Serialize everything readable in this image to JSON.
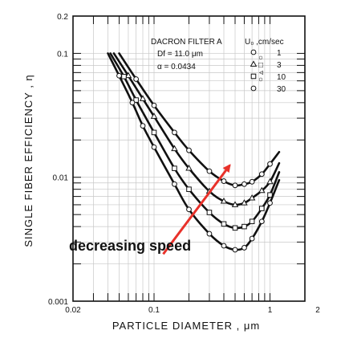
{
  "chart_data": {
    "type": "line",
    "xscale": "log",
    "yscale": "log",
    "xlim": [
      0.02,
      2
    ],
    "ylim": [
      0.001,
      0.2
    ],
    "x_ticks": [
      {
        "value": 0.02,
        "label": "0.02"
      },
      {
        "value": 0.1,
        "label": "0.1"
      },
      {
        "value": 1,
        "label": "1"
      },
      {
        "value": 2,
        "label": "2"
      }
    ],
    "y_ticks": [
      {
        "value": 0.2,
        "label": "0.2"
      },
      {
        "value": 0.1,
        "label": "0.1"
      },
      {
        "value": 0.01,
        "label": "0.01"
      },
      {
        "value": 0.001,
        "label": "0.001"
      }
    ],
    "xlabel": "PARTICLE  DIAMETER  ,  μm",
    "ylabel": "SINGLE  FIBER  EFFICIENCY ,  η",
    "legend": {
      "title": "DACRON FILTER A",
      "param_lines": [
        "Df = 11.0 μm",
        "α = 0.0434"
      ],
      "column_header": "U₀ ,cm/sec",
      "entries": [
        {
          "marker": "circle",
          "label": "1"
        },
        {
          "marker": "triangle",
          "label": "3"
        },
        {
          "marker": "square",
          "label": "10"
        },
        {
          "marker": "circle",
          "label": "30"
        }
      ],
      "rotated_labels": [
        "○",
        "▵",
        "□",
        "○"
      ]
    },
    "series": [
      {
        "name": "1",
        "marker": "circle",
        "color": "#111111",
        "points": [
          [
            0.05,
            0.1
          ],
          [
            0.07,
            0.062
          ],
          [
            0.1,
            0.038
          ],
          [
            0.15,
            0.023
          ],
          [
            0.2,
            0.0165
          ],
          [
            0.3,
            0.0112
          ],
          [
            0.4,
            0.0093
          ],
          [
            0.5,
            0.0086
          ],
          [
            0.6,
            0.0088
          ],
          [
            0.7,
            0.0092
          ],
          [
            0.85,
            0.0106
          ],
          [
            1.0,
            0.0128
          ],
          [
            1.2,
            0.016
          ]
        ]
      },
      {
        "name": "3",
        "marker": "triangle",
        "color": "#111111",
        "points": [
          [
            0.045,
            0.1
          ],
          [
            0.06,
            0.066
          ],
          [
            0.08,
            0.043
          ],
          [
            0.1,
            0.031
          ],
          [
            0.15,
            0.017
          ],
          [
            0.2,
            0.0118
          ],
          [
            0.3,
            0.0077
          ],
          [
            0.4,
            0.0064
          ],
          [
            0.5,
            0.006
          ],
          [
            0.6,
            0.0062
          ],
          [
            0.7,
            0.0068
          ],
          [
            0.85,
            0.0078
          ],
          [
            1.0,
            0.0092
          ],
          [
            1.2,
            0.013
          ]
        ]
      },
      {
        "name": "10",
        "marker": "square",
        "color": "#111111",
        "points": [
          [
            0.042,
            0.1
          ],
          [
            0.055,
            0.065
          ],
          [
            0.07,
            0.042
          ],
          [
            0.1,
            0.023
          ],
          [
            0.15,
            0.0118
          ],
          [
            0.2,
            0.008
          ],
          [
            0.3,
            0.0052
          ],
          [
            0.4,
            0.0042
          ],
          [
            0.5,
            0.0039
          ],
          [
            0.6,
            0.004
          ],
          [
            0.7,
            0.0044
          ],
          [
            0.85,
            0.0056
          ],
          [
            1.0,
            0.0072
          ],
          [
            1.2,
            0.011
          ]
        ]
      },
      {
        "name": "30",
        "marker": "circle",
        "color": "#111111",
        "points": [
          [
            0.04,
            0.1
          ],
          [
            0.05,
            0.066
          ],
          [
            0.065,
            0.04
          ],
          [
            0.08,
            0.026
          ],
          [
            0.1,
            0.0175
          ],
          [
            0.15,
            0.0088
          ],
          [
            0.2,
            0.0055
          ],
          [
            0.3,
            0.0035
          ],
          [
            0.4,
            0.0028
          ],
          [
            0.5,
            0.0026
          ],
          [
            0.6,
            0.0027
          ],
          [
            0.7,
            0.0032
          ],
          [
            0.85,
            0.0044
          ],
          [
            1.0,
            0.0062
          ],
          [
            1.2,
            0.0095
          ]
        ]
      }
    ],
    "annotations": [
      {
        "text": "decreasing speed",
        "color": "#e8312a",
        "arrow_from": [
          0.12,
          0.0024
        ],
        "arrow_to": [
          0.45,
          0.0125
        ]
      }
    ]
  }
}
